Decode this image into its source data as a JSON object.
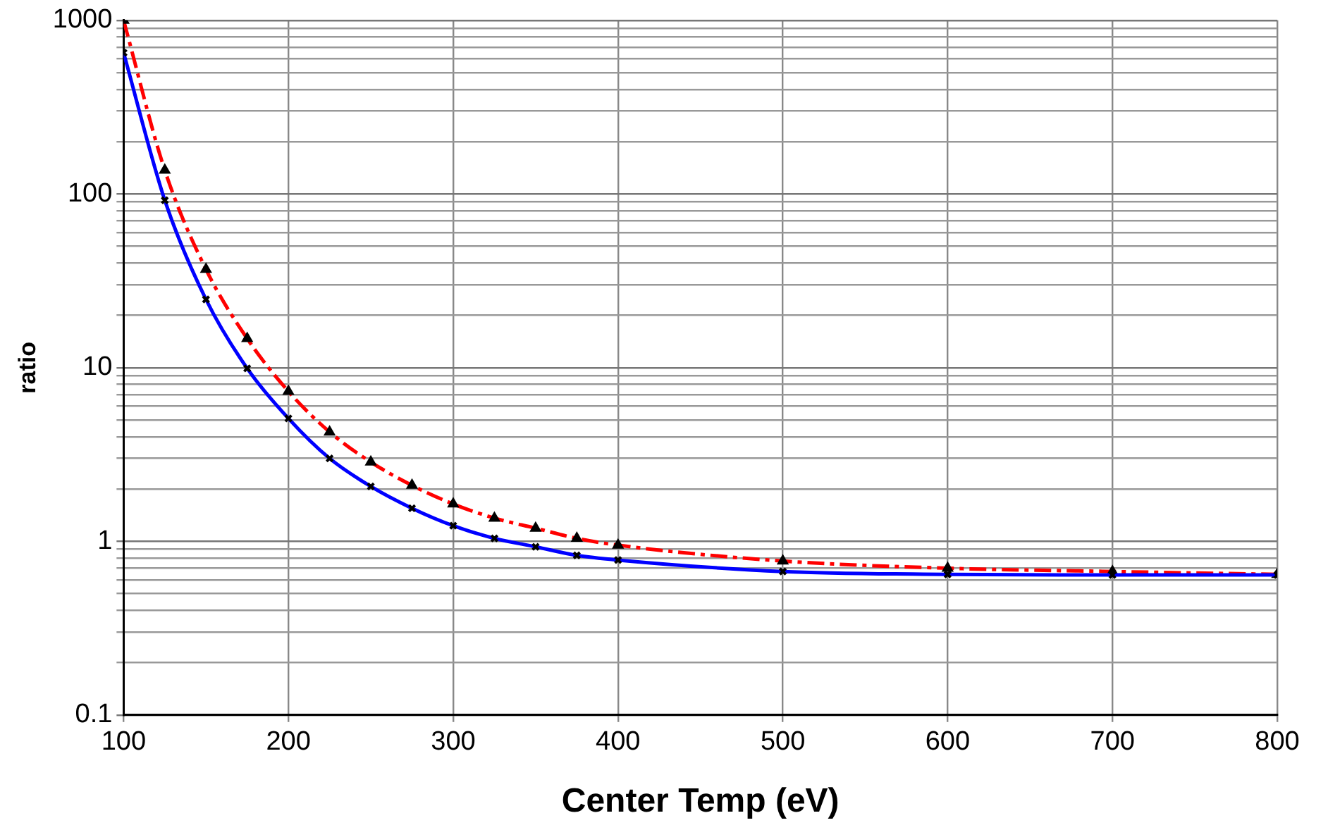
{
  "chart_data": {
    "type": "line",
    "xlabel": "Center Temp (eV)",
    "ylabel": "ratio",
    "x": [
      100,
      125,
      150,
      175,
      200,
      225,
      250,
      275,
      300,
      325,
      350,
      375,
      400,
      500,
      600,
      700,
      800
    ],
    "series": [
      {
        "color": "#0000ff",
        "line_style": "solid",
        "marker": "cross",
        "values": [
          650,
          92,
          24.7,
          9.9,
          5.1,
          3.0,
          2.07,
          1.55,
          1.23,
          1.04,
          0.93,
          0.83,
          0.78,
          0.67,
          0.645,
          0.64,
          0.64
        ]
      },
      {
        "color": "#ff0000",
        "line_style": "dashed",
        "marker": "triangle",
        "values": [
          1000,
          137,
          36.8,
          14.7,
          7.3,
          4.26,
          2.86,
          2.1,
          1.64,
          1.36,
          1.19,
          1.04,
          0.95,
          0.77,
          0.7,
          0.67,
          0.645
        ]
      }
    ],
    "xlim": [
      100,
      800
    ],
    "xticks": [
      100,
      200,
      300,
      400,
      500,
      600,
      700,
      800
    ],
    "ylim": [
      0.1,
      1000
    ],
    "yticks": [
      0.1,
      1,
      10,
      100,
      1000
    ],
    "log": "y",
    "grid": true,
    "legend": false
  }
}
